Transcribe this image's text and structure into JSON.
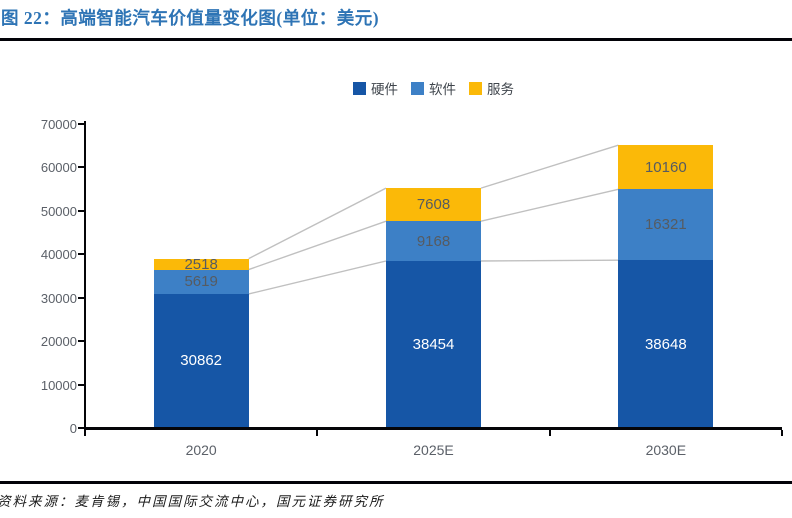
{
  "header": {
    "title": "图 22：高端智能汽车价值量变化图(单位：美元)",
    "title_color": "#2E74B5"
  },
  "footer": {
    "source": "资料来源：麦肯锡，中国国际交流中心，国元证券研究所"
  },
  "chart_data": {
    "type": "bar",
    "stacked": true,
    "title": "高端智能汽车价值量变化图",
    "unit": "美元",
    "categories": [
      "2020",
      "2025E",
      "2030E"
    ],
    "series": [
      {
        "name": "硬件",
        "color": "#1656A6",
        "label_color": "#FFFFFF",
        "values": [
          30862,
          38454,
          38648
        ]
      },
      {
        "name": "软件",
        "color": "#3D80C6",
        "label_color": "#565B61",
        "values": [
          5619,
          9168,
          16321
        ]
      },
      {
        "name": "服务",
        "color": "#FBB908",
        "label_color": "#565B61",
        "values": [
          2518,
          7608,
          10160
        ]
      }
    ],
    "totals": [
      38999,
      55230,
      65129
    ],
    "ylim": [
      0,
      70000
    ],
    "ytick_step": 10000,
    "ytick_labels": [
      "0",
      "10000",
      "20000",
      "30000",
      "40000",
      "50000",
      "60000",
      "70000"
    ],
    "grid": false,
    "legend_position": "top-center",
    "series_lines": true,
    "colors": {
      "axis": "#050508",
      "tick_label": "#5b6068",
      "series_line": "#C0C0C0"
    }
  }
}
